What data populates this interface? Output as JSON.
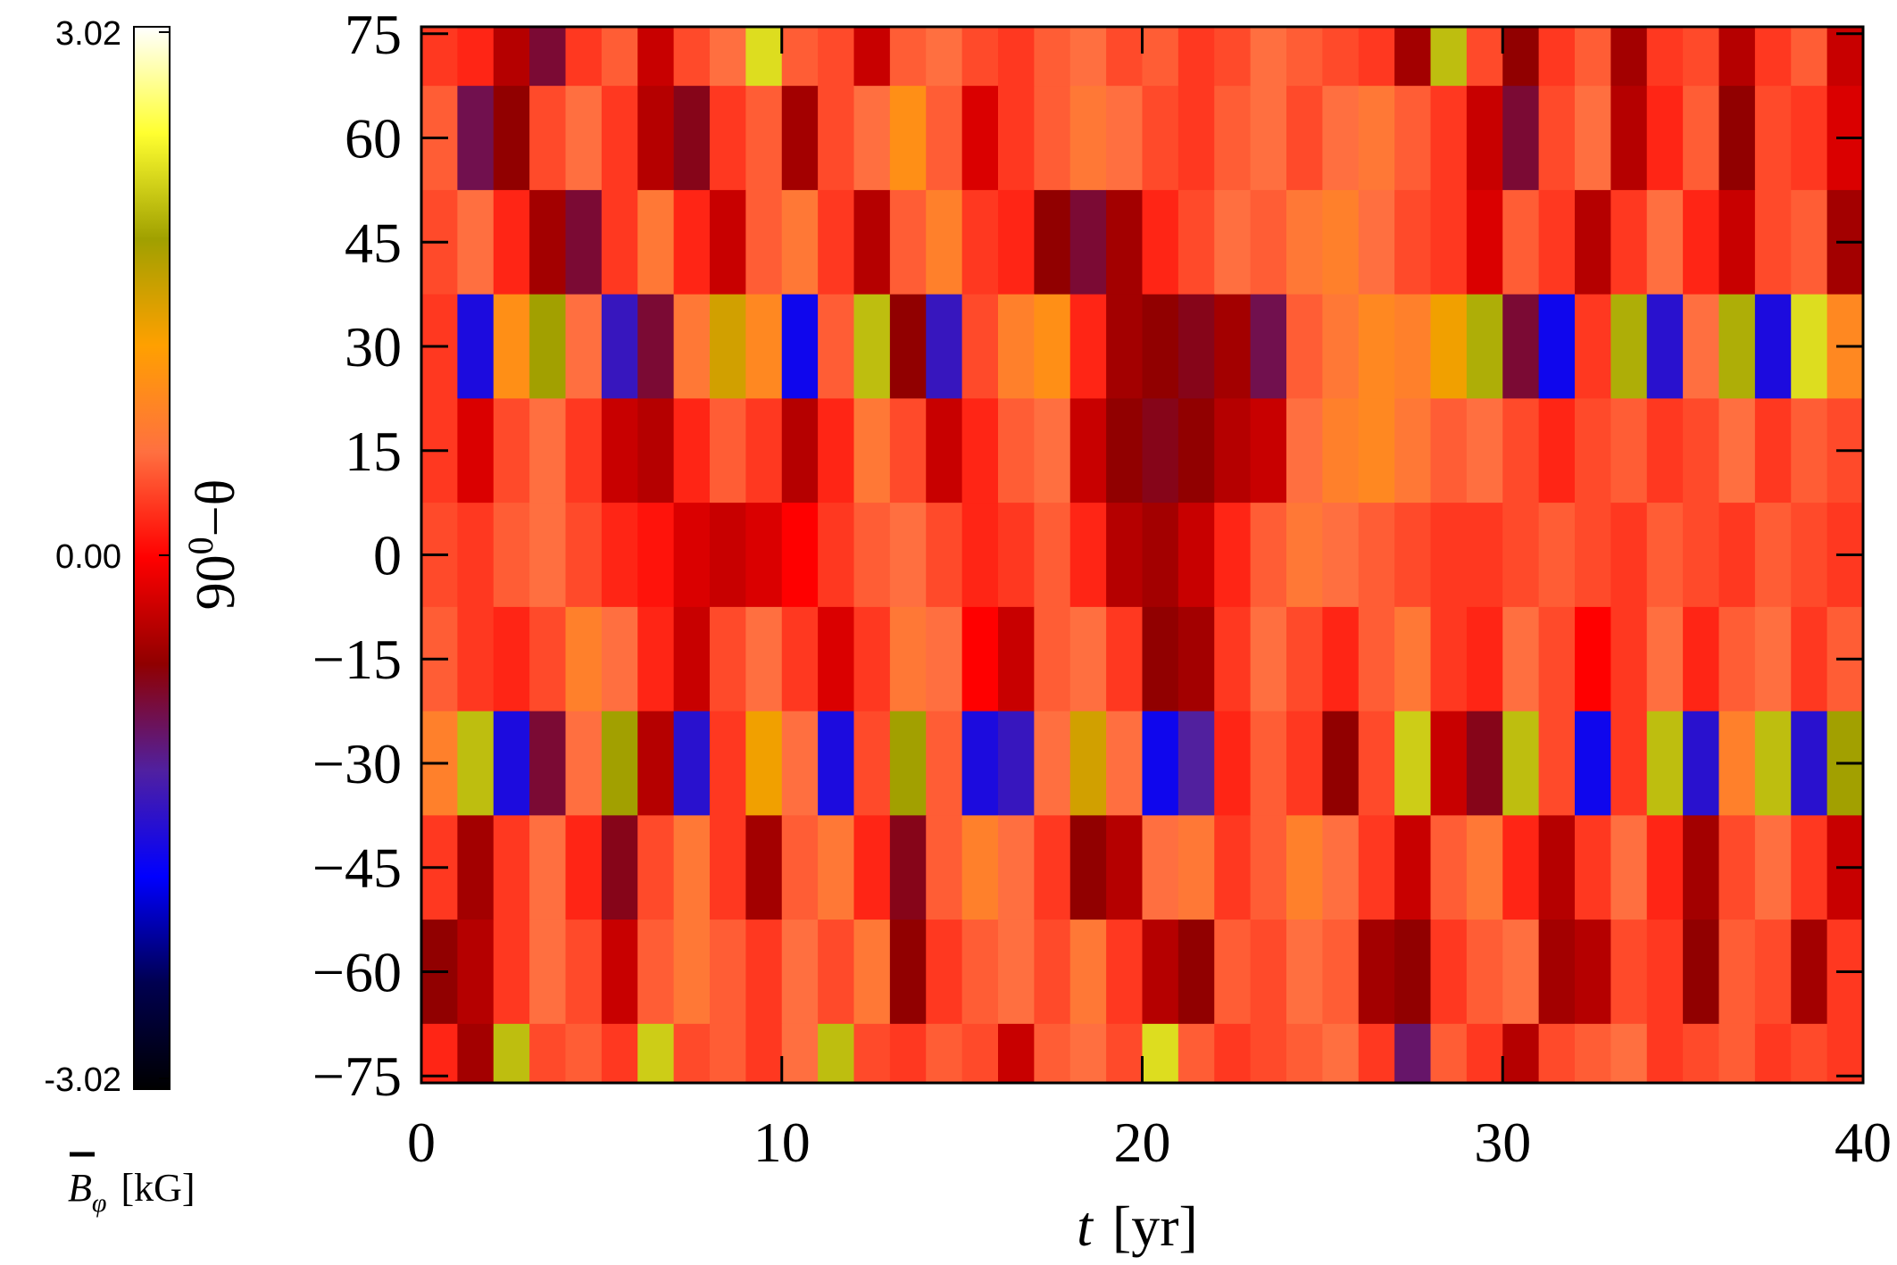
{
  "chart_data": {
    "type": "heatmap",
    "xlabel": {
      "var": "t",
      "unit": "[yr]"
    },
    "ylabel": {
      "base": "90",
      "sup": "0",
      "rest": "−θ"
    },
    "colorbar_label": {
      "var": "B",
      "sub": "φ",
      "unit": "[kG]"
    },
    "xlim": [
      0,
      40
    ],
    "xticks": [
      0,
      10,
      20,
      30,
      40
    ],
    "ylim": [
      -76,
      76
    ],
    "yticks": [
      75,
      60,
      45,
      30,
      15,
      0,
      {
        "value": -15,
        "label": "−15"
      },
      {
        "value": -30,
        "label": "−30"
      },
      {
        "value": -45,
        "label": "−45"
      },
      {
        "value": -60,
        "label": "−60"
      },
      {
        "value": -75,
        "label": "−75"
      }
    ],
    "clim": [
      -3.02,
      3.02
    ],
    "cticks": [
      3.02,
      {
        "value": 0,
        "label": "0.00"
      },
      -3.02
    ],
    "colormap": [
      "#000000",
      "#000050",
      "#0000ff",
      "#5020a0",
      "#900000",
      "#ff0000",
      "#ff7040",
      "#ffa000",
      "#a0a000",
      "#ffff30",
      "#ffffff"
    ],
    "x": [
      0.5,
      1.5,
      2.5,
      3.5,
      4.5,
      5.5,
      6.5,
      7.5,
      8.5,
      9.5,
      10.5,
      11.5,
      12.5,
      13.5,
      14.5,
      15.5,
      16.5,
      17.5,
      18.5,
      19.5,
      20.5,
      21.5,
      22.5,
      23.5,
      24.5,
      25.5,
      26.5,
      27.5,
      28.5,
      29.5,
      30.5,
      31.5,
      32.5,
      33.5,
      34.5,
      35.5,
      36.5,
      37.5,
      38.5,
      39.5
    ],
    "y": [
      75,
      60,
      45,
      30,
      15,
      0,
      -15,
      -30,
      -45,
      -60,
      -75
    ],
    "z": [
      [
        0.3,
        0.2,
        -0.4,
        -0.8,
        0.3,
        0.5,
        -0.3,
        0.4,
        0.6,
        2.2,
        0.5,
        0.4,
        -0.3,
        0.5,
        0.6,
        0.4,
        0.3,
        0.5,
        0.6,
        0.4,
        0.5,
        0.3,
        0.4,
        0.6,
        0.5,
        0.4,
        0.3,
        -0.5,
        2.0,
        0.4,
        -0.6,
        0.3,
        0.5,
        -0.5,
        0.3,
        0.4,
        -0.4,
        0.3,
        0.5,
        -0.3
      ],
      [
        0.5,
        -0.9,
        -0.6,
        0.4,
        0.6,
        0.3,
        -0.4,
        -0.7,
        0.3,
        0.5,
        -0.5,
        0.4,
        0.6,
        1.0,
        0.5,
        -0.2,
        0.3,
        0.5,
        0.7,
        0.6,
        0.4,
        0.3,
        0.5,
        0.6,
        0.4,
        0.6,
        0.7,
        0.5,
        0.3,
        -0.3,
        -0.8,
        0.4,
        0.6,
        -0.4,
        0.2,
        0.5,
        -0.6,
        0.4,
        0.3,
        -0.2
      ],
      [
        0.4,
        0.6,
        0.2,
        -0.5,
        -0.8,
        0.3,
        0.7,
        0.2,
        -0.3,
        0.5,
        0.7,
        0.3,
        -0.4,
        0.5,
        0.8,
        0.3,
        0.2,
        -0.6,
        -0.8,
        -0.5,
        0.2,
        0.4,
        0.6,
        0.5,
        0.7,
        0.8,
        0.6,
        0.4,
        0.3,
        -0.2,
        0.5,
        0.3,
        -0.4,
        0.3,
        0.6,
        0.2,
        -0.3,
        0.4,
        0.5,
        -0.5
      ],
      [
        0.3,
        -1.6,
        1.0,
        1.8,
        0.6,
        -1.4,
        -0.8,
        0.7,
        1.5,
        0.9,
        -1.7,
        0.5,
        2.0,
        -0.6,
        -1.4,
        0.4,
        0.8,
        1.0,
        0.2,
        -0.5,
        -0.6,
        -0.7,
        -0.5,
        -0.9,
        0.5,
        0.7,
        0.9,
        0.8,
        1.3,
        1.9,
        -0.8,
        -1.7,
        0.3,
        1.9,
        -1.5,
        0.6,
        1.9,
        -1.6,
        2.2,
        0.9
      ],
      [
        0.3,
        -0.2,
        0.4,
        0.6,
        0.3,
        -0.3,
        -0.4,
        0.2,
        0.5,
        0.3,
        -0.4,
        0.2,
        0.7,
        0.4,
        -0.3,
        0.2,
        0.5,
        0.6,
        -0.3,
        -0.6,
        -0.7,
        -0.6,
        -0.4,
        -0.3,
        0.6,
        0.8,
        0.9,
        0.7,
        0.5,
        0.6,
        0.4,
        0.2,
        0.4,
        0.5,
        0.3,
        0.4,
        0.6,
        0.3,
        0.5,
        0.4
      ],
      [
        0.4,
        0.3,
        0.5,
        0.6,
        0.4,
        0.2,
        0.1,
        -0.2,
        -0.3,
        -0.2,
        0.0,
        0.3,
        0.5,
        0.6,
        0.4,
        0.2,
        0.3,
        0.5,
        0.2,
        -0.4,
        -0.5,
        -0.3,
        0.2,
        0.5,
        0.7,
        0.6,
        0.5,
        0.4,
        0.3,
        0.3,
        0.4,
        0.5,
        0.4,
        0.3,
        0.5,
        0.4,
        0.3,
        0.5,
        0.4,
        0.3
      ],
      [
        0.5,
        0.3,
        0.2,
        0.4,
        0.8,
        0.6,
        0.2,
        -0.3,
        0.4,
        0.6,
        0.3,
        -0.2,
        0.3,
        0.7,
        0.6,
        0.0,
        -0.3,
        0.5,
        0.6,
        0.3,
        -0.6,
        -0.5,
        0.3,
        0.6,
        0.4,
        0.2,
        0.5,
        0.7,
        0.3,
        0.2,
        0.6,
        0.4,
        0.0,
        0.3,
        0.6,
        0.2,
        0.5,
        0.6,
        0.3,
        0.5
      ],
      [
        0.8,
        2.0,
        -1.6,
        -0.8,
        0.6,
        1.8,
        -0.4,
        -1.5,
        0.3,
        1.3,
        0.6,
        -1.6,
        0.4,
        1.8,
        0.5,
        -1.6,
        -1.4,
        0.6,
        1.5,
        0.6,
        -1.7,
        -1.2,
        0.2,
        0.5,
        0.3,
        -0.6,
        0.4,
        2.1,
        -0.3,
        -0.7,
        2.0,
        0.4,
        -1.7,
        0.3,
        2.0,
        -1.5,
        0.8,
        2.0,
        -1.5,
        1.8
      ],
      [
        0.3,
        -0.5,
        0.3,
        0.6,
        0.2,
        -0.7,
        0.4,
        0.7,
        0.3,
        -0.5,
        0.5,
        0.7,
        0.2,
        -0.7,
        0.5,
        0.8,
        0.6,
        0.3,
        -0.6,
        -0.4,
        0.6,
        0.7,
        0.3,
        0.5,
        0.8,
        0.6,
        0.3,
        -0.3,
        0.5,
        0.7,
        0.2,
        -0.4,
        0.3,
        0.6,
        0.2,
        -0.5,
        0.4,
        0.6,
        0.3,
        -0.3
      ],
      [
        -0.6,
        -0.4,
        0.3,
        0.6,
        0.4,
        -0.3,
        0.5,
        0.7,
        0.5,
        0.3,
        0.6,
        0.4,
        0.7,
        -0.6,
        0.3,
        0.5,
        0.6,
        0.4,
        0.7,
        0.3,
        -0.4,
        -0.6,
        0.5,
        0.4,
        0.6,
        0.5,
        -0.5,
        -0.6,
        0.3,
        0.5,
        0.6,
        -0.5,
        -0.4,
        0.4,
        0.3,
        -0.6,
        0.5,
        0.4,
        -0.5,
        0.3
      ],
      [
        0.2,
        -0.5,
        2.0,
        0.4,
        0.5,
        0.3,
        2.1,
        0.4,
        0.5,
        0.3,
        0.6,
        2.0,
        0.4,
        0.3,
        0.5,
        0.4,
        -0.3,
        0.5,
        0.6,
        0.4,
        2.2,
        0.5,
        0.3,
        0.4,
        0.5,
        0.6,
        0.3,
        -1.0,
        0.5,
        0.3,
        -0.4,
        0.4,
        0.5,
        0.6,
        0.3,
        0.4,
        0.5,
        0.3,
        0.4,
        0.3
      ]
    ]
  }
}
